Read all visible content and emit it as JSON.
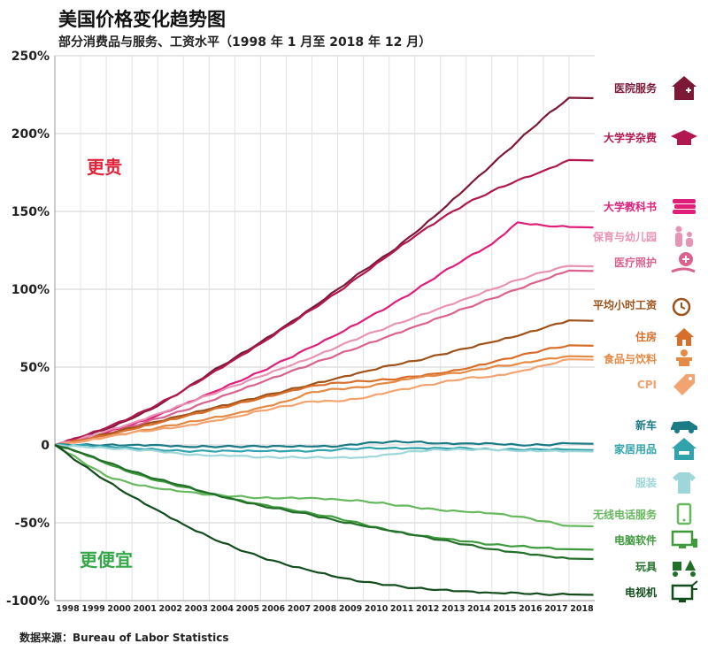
{
  "header": {
    "title": "美国价格变化趋势图",
    "subtitle": "部分消费品与服务、工资水平（1998 年 1 月至 2018 年 12 月）"
  },
  "source": "数据来源：Bureau of Labor Statistics",
  "chart_data": {
    "type": "line",
    "title": "美国价格变化趋势图",
    "subtitle": "部分消费品与服务、工资水平（1998 年 1 月至 2018 年 12 月）",
    "xlabel": "",
    "ylabel": "",
    "x": [
      1998,
      1999,
      2000,
      2001,
      2002,
      2003,
      2004,
      2005,
      2006,
      2007,
      2008,
      2009,
      2010,
      2011,
      2012,
      2013,
      2014,
      2015,
      2016,
      2017,
      2018
    ],
    "x_tick_labels": [
      "1998",
      "1999",
      "2000",
      "2001",
      "2002",
      "2003",
      "2004",
      "2005",
      "2006",
      "2007",
      "2008",
      "2009",
      "2010",
      "2011",
      "2012",
      "2013",
      "2014",
      "2015",
      "2016",
      "2017",
      "2018"
    ],
    "xlim": [
      1998,
      2019
    ],
    "ylim": [
      -100,
      250
    ],
    "y_ticks": [
      250,
      200,
      150,
      100,
      50,
      0,
      -50,
      -100
    ],
    "y_tick_labels": [
      "250%",
      "200%",
      "150%",
      "100%",
      "50%",
      "0",
      "-50%",
      "-100%"
    ],
    "grid": true,
    "annotations": {
      "more_expensive": "更贵",
      "cheaper": "更便宜"
    },
    "series": [
      {
        "name": "医院服务",
        "color": "#7d1836",
        "icon": "hospital-icon",
        "values": [
          0,
          5,
          10,
          17,
          25,
          35,
          46,
          56,
          66,
          77,
          88,
          100,
          112,
          123,
          136,
          150,
          165,
          180,
          195,
          210,
          223
        ]
      },
      {
        "name": "大学学杂费",
        "color": "#b0184f",
        "icon": "graduation-cap-icon",
        "values": [
          0,
          5,
          11,
          18,
          26,
          35,
          45,
          55,
          65,
          76,
          87,
          98,
          110,
          122,
          134,
          145,
          155,
          163,
          170,
          176,
          183
        ]
      },
      {
        "name": "大学教科书",
        "color": "#e01f7b",
        "icon": "books-icon",
        "values": [
          0,
          4,
          8,
          13,
          19,
          26,
          33,
          40,
          47,
          55,
          63,
          71,
          80,
          89,
          99,
          110,
          120,
          129,
          143,
          141,
          140
        ]
      },
      {
        "name": "保育与幼儿园",
        "color": "#e893b4",
        "icon": "family-icon",
        "values": [
          0,
          4,
          9,
          14,
          20,
          26,
          32,
          38,
          44,
          50,
          56,
          63,
          70,
          76,
          82,
          88,
          94,
          100,
          106,
          111,
          115
        ]
      },
      {
        "name": "医疗照护",
        "color": "#d9628f",
        "icon": "medical-care-icon",
        "values": [
          0,
          3,
          7,
          12,
          17,
          22,
          28,
          34,
          40,
          46,
          52,
          58,
          64,
          70,
          76,
          82,
          88,
          94,
          100,
          106,
          112
        ]
      },
      {
        "name": "平均小时工资",
        "color": "#9e5118",
        "icon": "clock-dollar-icon",
        "values": [
          0,
          3,
          7,
          11,
          15,
          19,
          23,
          27,
          31,
          35,
          39,
          43,
          47,
          51,
          54,
          58,
          62,
          66,
          70,
          75,
          80
        ]
      },
      {
        "name": "住房",
        "color": "#d76e2a",
        "icon": "house-icon",
        "values": [
          0,
          3,
          6,
          10,
          14,
          18,
          22,
          26,
          30,
          34,
          38,
          40,
          41,
          42,
          44,
          46,
          49,
          53,
          57,
          61,
          64
        ]
      },
      {
        "name": "食品与饮料",
        "color": "#e48a45",
        "icon": "food-icon",
        "values": [
          0,
          2,
          5,
          8,
          11,
          14,
          17,
          20,
          24,
          28,
          34,
          36,
          37,
          40,
          43,
          45,
          47,
          50,
          52,
          55,
          57
        ]
      },
      {
        "name": "CPI",
        "color": "#f2a370",
        "icon": "price-tag-icon",
        "values": [
          0,
          2,
          5,
          8,
          10,
          12,
          15,
          18,
          22,
          25,
          28,
          28,
          30,
          34,
          37,
          40,
          43,
          44,
          47,
          51,
          55
        ]
      },
      {
        "name": "新车",
        "color": "#1a7a86",
        "icon": "car-icon",
        "values": [
          0,
          0,
          0,
          0,
          0,
          -1,
          -1,
          -1,
          -1,
          -1,
          -1,
          -1,
          1,
          2,
          2,
          1,
          1,
          1,
          0,
          0,
          1
        ]
      },
      {
        "name": "家居用品",
        "color": "#32a3ad",
        "icon": "home-furnishing-icon",
        "values": [
          0,
          0,
          -1,
          -2,
          -3,
          -4,
          -4,
          -4,
          -4,
          -4,
          -4,
          -3,
          -2,
          -2,
          -2,
          -2,
          -2,
          -3,
          -3,
          -3,
          -3
        ]
      },
      {
        "name": "服装",
        "color": "#9fd6d9",
        "icon": "clothing-icon",
        "values": [
          0,
          -1,
          -2,
          -3,
          -4,
          -6,
          -7,
          -7,
          -8,
          -8,
          -8,
          -8,
          -8,
          -6,
          -4,
          -3,
          -3,
          -3,
          -4,
          -4,
          -4
        ]
      },
      {
        "name": "无线电话服务",
        "color": "#67b85e",
        "icon": "smartphone-icon",
        "values": [
          0,
          -10,
          -20,
          -25,
          -28,
          -30,
          -32,
          -33,
          -34,
          -34,
          -34,
          -35,
          -36,
          -38,
          -40,
          -42,
          -43,
          -44,
          -46,
          -49,
          -52
        ]
      },
      {
        "name": "电脑软件",
        "color": "#3f9a3d",
        "icon": "computer-icon",
        "values": [
          0,
          -5,
          -12,
          -18,
          -23,
          -27,
          -31,
          -35,
          -38,
          -41,
          -44,
          -47,
          -51,
          -55,
          -58,
          -60,
          -62,
          -64,
          -65,
          -66,
          -67
        ]
      },
      {
        "name": "玩具",
        "color": "#236f2a",
        "icon": "toys-icon",
        "values": [
          0,
          -5,
          -11,
          -17,
          -22,
          -26,
          -31,
          -35,
          -39,
          -42,
          -45,
          -49,
          -52,
          -55,
          -58,
          -61,
          -64,
          -67,
          -69,
          -71,
          -73
        ]
      },
      {
        "name": "电视机",
        "color": "#134d1d",
        "icon": "tv-icon",
        "values": [
          0,
          -12,
          -23,
          -33,
          -42,
          -51,
          -59,
          -66,
          -72,
          -77,
          -81,
          -85,
          -88,
          -90,
          -92,
          -93,
          -94,
          -95,
          -95,
          -96,
          -96
        ]
      }
    ]
  }
}
